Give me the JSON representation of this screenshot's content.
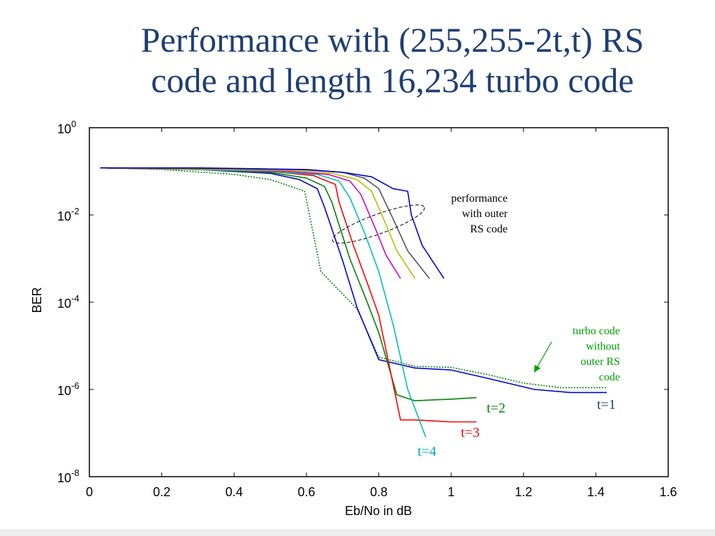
{
  "slide": {
    "title_line1": "Performance with (255,255-2t,t) RS",
    "title_line2": "code and length 16,234 turbo code"
  },
  "chart_data": {
    "type": "line",
    "xlabel": "Eb/No in dB",
    "ylabel": "BER",
    "xlim": [
      0,
      1.6
    ],
    "ylim": [
      1e-08,
      1
    ],
    "y_scale": "log",
    "grid": false,
    "x_ticks": [
      0,
      0.2,
      0.4,
      0.6,
      0.8,
      1.0,
      1.2,
      1.4,
      1.6
    ],
    "x_tick_labels": [
      "0",
      "0.2",
      "0.4",
      "0.6",
      "0.8",
      "1",
      "1.2",
      "1.4",
      "1.6"
    ],
    "y_ticks": [
      1,
      0.01,
      0.0001,
      1e-06,
      1e-08
    ],
    "y_tick_labels": [
      {
        "base": "10",
        "exp": "0"
      },
      {
        "base": "10",
        "exp": "-2"
      },
      {
        "base": "10",
        "exp": "-4"
      },
      {
        "base": "10",
        "exp": "-6"
      },
      {
        "base": "10",
        "exp": "-8"
      }
    ],
    "series": [
      {
        "color": "#008000",
        "dash": "2,2",
        "points": [
          [
            0.03,
            0.12
          ],
          [
            0.2,
            0.11
          ],
          [
            0.4,
            0.085
          ],
          [
            0.5,
            0.065
          ],
          [
            0.595,
            0.035
          ],
          [
            0.64,
            0.0005
          ],
          [
            0.74,
            7e-05
          ],
          [
            0.8,
            5.5e-06
          ],
          [
            0.9,
            3.4e-06
          ],
          [
            1.0,
            3.2e-06
          ],
          [
            1.1,
            2.2e-06
          ],
          [
            1.2,
            1.4e-06
          ],
          [
            1.3,
            1.1e-06
          ],
          [
            1.43,
            1.1e-06
          ]
        ]
      },
      {
        "color": "#0000cc",
        "points": [
          [
            0.03,
            0.12
          ],
          [
            0.3,
            0.11
          ],
          [
            0.5,
            0.09
          ],
          [
            0.58,
            0.065
          ],
          [
            0.63,
            0.04
          ],
          [
            0.65,
            0.015
          ],
          [
            0.7,
            0.0009
          ],
          [
            0.74,
            7.5e-05
          ],
          [
            0.8,
            4.8e-06
          ],
          [
            0.9,
            3.1e-06
          ],
          [
            1.0,
            2.8e-06
          ],
          [
            1.1,
            1.8e-06
          ],
          [
            1.23,
            1e-06
          ],
          [
            1.33,
            8.5e-07
          ],
          [
            1.43,
            8.5e-07
          ]
        ]
      },
      {
        "color": "#008000",
        "points": [
          [
            0.03,
            0.12
          ],
          [
            0.3,
            0.11
          ],
          [
            0.5,
            0.095
          ],
          [
            0.6,
            0.07
          ],
          [
            0.65,
            0.045
          ],
          [
            0.67,
            0.02
          ],
          [
            0.72,
            0.001
          ],
          [
            0.77,
            9e-05
          ],
          [
            0.8,
            2e-05
          ],
          [
            0.85,
            7.5e-07
          ],
          [
            0.9,
            5.5e-07
          ],
          [
            1.0,
            6e-07
          ],
          [
            1.07,
            6.5e-07
          ]
        ]
      },
      {
        "color": "#ff0000",
        "points": [
          [
            0.03,
            0.12
          ],
          [
            0.3,
            0.11
          ],
          [
            0.5,
            0.1
          ],
          [
            0.62,
            0.08
          ],
          [
            0.68,
            0.05
          ],
          [
            0.69,
            0.02
          ],
          [
            0.73,
            0.002
          ],
          [
            0.77,
            0.00025
          ],
          [
            0.8,
            5e-05
          ],
          [
            0.86,
            2e-07
          ],
          [
            0.9,
            2e-07
          ],
          [
            1.0,
            1.8e-07
          ],
          [
            1.07,
            1.8e-07
          ]
        ]
      },
      {
        "color": "#00bbbb",
        "points": [
          [
            0.03,
            0.12
          ],
          [
            0.3,
            0.11
          ],
          [
            0.5,
            0.1
          ],
          [
            0.63,
            0.085
          ],
          [
            0.69,
            0.06
          ],
          [
            0.72,
            0.025
          ],
          [
            0.76,
            0.004
          ],
          [
            0.8,
            0.0005
          ],
          [
            0.84,
            3e-05
          ],
          [
            0.88,
            1e-06
          ],
          [
            0.93,
            8e-08
          ]
        ]
      },
      {
        "color": "#cc00cc",
        "points": [
          [
            0.03,
            0.12
          ],
          [
            0.35,
            0.11
          ],
          [
            0.55,
            0.1
          ],
          [
            0.66,
            0.085
          ],
          [
            0.72,
            0.06
          ],
          [
            0.75,
            0.03
          ],
          [
            0.79,
            0.005
          ],
          [
            0.82,
            0.0012
          ],
          [
            0.86,
            0.00035
          ]
        ]
      },
      {
        "color": "#bbbb00",
        "points": [
          [
            0.03,
            0.12
          ],
          [
            0.35,
            0.11
          ],
          [
            0.56,
            0.105
          ],
          [
            0.67,
            0.09
          ],
          [
            0.74,
            0.065
          ],
          [
            0.78,
            0.035
          ],
          [
            0.82,
            0.006
          ],
          [
            0.85,
            0.0015
          ],
          [
            0.9,
            0.00035
          ]
        ]
      },
      {
        "color": "#555555",
        "points": [
          [
            0.03,
            0.12
          ],
          [
            0.35,
            0.115
          ],
          [
            0.58,
            0.11
          ],
          [
            0.7,
            0.095
          ],
          [
            0.76,
            0.07
          ],
          [
            0.8,
            0.04
          ],
          [
            0.84,
            0.008
          ],
          [
            0.88,
            0.0015
          ],
          [
            0.94,
            0.00035
          ]
        ]
      },
      {
        "color": "#0000cc",
        "points": [
          [
            0.03,
            0.12
          ],
          [
            0.3,
            0.12
          ],
          [
            0.45,
            0.115
          ],
          [
            0.6,
            0.11
          ],
          [
            0.7,
            0.095
          ],
          [
            0.78,
            0.075
          ],
          [
            0.84,
            0.04
          ],
          [
            0.88,
            0.035
          ],
          [
            0.89,
            0.01
          ],
          [
            0.92,
            0.002
          ],
          [
            0.98,
            0.00035
          ]
        ]
      }
    ],
    "annotations": [
      {
        "color": "#000000",
        "lines": [
          "performance",
          "with outer",
          "RS code"
        ]
      },
      {
        "color": "#00a000",
        "lines": [
          "turbo code",
          "without",
          "outer RS",
          "code"
        ]
      },
      {
        "color": "#1f3f73",
        "text": "t=1"
      },
      {
        "color": "#008000",
        "text": "t=2"
      },
      {
        "color": "#ff0000",
        "text": "t=3"
      },
      {
        "color": "#00aaaa",
        "text": "t=4"
      }
    ]
  }
}
